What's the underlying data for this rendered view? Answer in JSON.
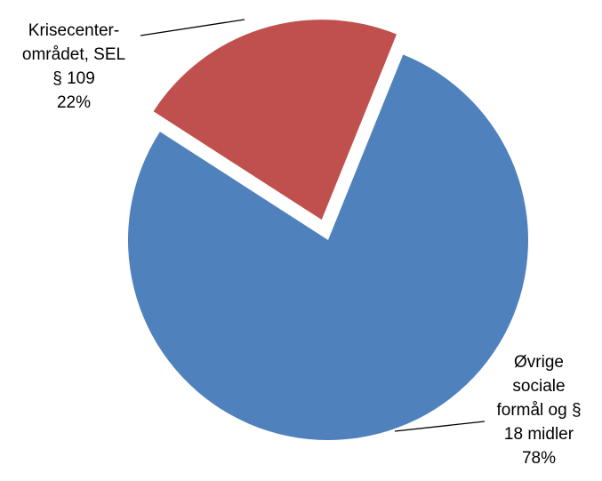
{
  "chart_data": {
    "type": "pie",
    "exploded": true,
    "slices": [
      {
        "label_lines": [
          "Krisecenter-",
          "området, SEL",
          "§ 109",
          "22%"
        ],
        "value": 22,
        "color": "#C0504D"
      },
      {
        "label_lines": [
          "Øvrige",
          "sociale",
          "formål og §",
          "18 midler",
          "78%"
        ],
        "value": 78,
        "color": "#4F81BD"
      }
    ]
  }
}
